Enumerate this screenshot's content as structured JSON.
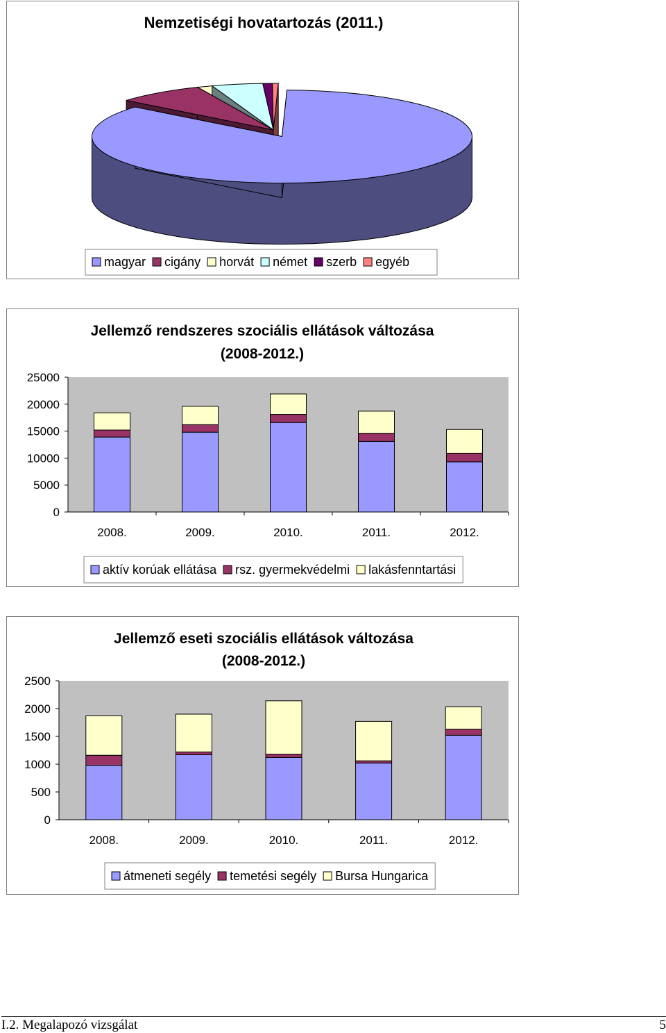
{
  "chart_data": [
    {
      "type": "pie",
      "title": "Nemzetiségi hovatartozás (2011.)",
      "categories": [
        "magyar",
        "cigány",
        "horvát",
        "német",
        "szerb",
        "egyéb"
      ],
      "values": [
        85.0,
        7.5,
        1.3,
        4.3,
        0.8,
        0.5
      ],
      "colors": [
        "#9999ff",
        "#993366",
        "#ffffcc",
        "#ccffff",
        "#660066",
        "#ff8080"
      ],
      "side_colors": [
        "#4d4d80",
        "#4d1a33",
        "#80806b",
        "#6b8080",
        "#330033",
        "#804040"
      ],
      "exploded": "magyar",
      "legend": "bottom",
      "three_d": true
    },
    {
      "type": "bar",
      "stacked": true,
      "title": "Jellemző rendszeres szociális ellátások változása (2008-2012.)",
      "categories": [
        "2008.",
        "2009.",
        "2010.",
        "2011.",
        "2012."
      ],
      "yticks": [
        "0",
        "5000",
        "10000",
        "15000",
        "20000",
        "25000"
      ],
      "ylim": [
        0,
        25000
      ],
      "series": [
        {
          "name": "aktív korúak ellátása",
          "color": "#9999ff",
          "values": [
            13900,
            14800,
            16600,
            13100,
            9300
          ]
        },
        {
          "name": "rsz. gyermekvédelmi",
          "color": "#993366",
          "values": [
            1300,
            1400,
            1500,
            1500,
            1600
          ]
        },
        {
          "name": "lakásfenntartási",
          "color": "#ffffcc",
          "values": [
            3200,
            3400,
            3800,
            4100,
            4400
          ]
        }
      ],
      "legend": "bottom",
      "grid": false
    },
    {
      "type": "bar",
      "stacked": true,
      "title": "Jellemző eseti szociális ellátások változása (2008-2012.)",
      "categories": [
        "2008.",
        "2009.",
        "2010.",
        "2011.",
        "2012."
      ],
      "yticks": [
        "0",
        "500",
        "1000",
        "1500",
        "2000",
        "2500"
      ],
      "ylim": [
        0,
        2500
      ],
      "series": [
        {
          "name": "átmeneti segély",
          "color": "#9999ff",
          "values": [
            980,
            1170,
            1120,
            1020,
            1520
          ]
        },
        {
          "name": "temetési segély",
          "color": "#993366",
          "values": [
            180,
            50,
            60,
            40,
            110
          ]
        },
        {
          "name": "Bursa Hungarica",
          "color": "#ffffcc",
          "values": [
            710,
            680,
            960,
            710,
            400
          ]
        }
      ],
      "legend": "bottom",
      "grid": false
    }
  ],
  "footer": {
    "left": "I.2. Megalapozó vizsgálat",
    "page_number": "5"
  }
}
